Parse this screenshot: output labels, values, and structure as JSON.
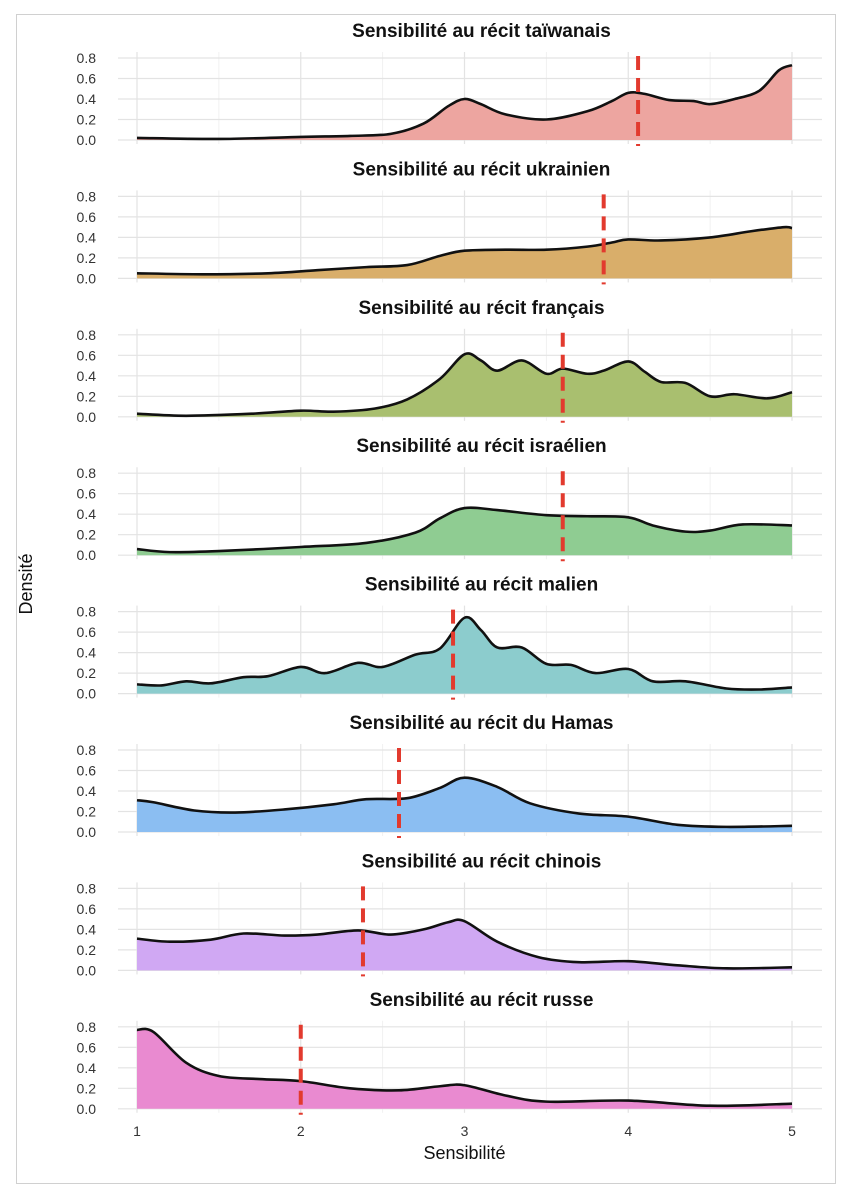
{
  "chart_data": {
    "type": "area",
    "subtype": "density-ridgeline-facets",
    "xlabel": "Sensibilité",
    "ylabel": "Densité",
    "xlim": [
      1,
      5
    ],
    "ylim": [
      0,
      0.8
    ],
    "x_ticks": [
      "1",
      "2",
      "3",
      "4",
      "5"
    ],
    "y_ticks": [
      "0.0",
      "0.2",
      "0.4",
      "0.6",
      "0.8"
    ],
    "grid": true,
    "mean_line": {
      "style": "dashed",
      "color": "#e23a2e"
    },
    "series": [
      {
        "name": "taiwanais",
        "title": "Sensibilité au récit taïwanais",
        "color": "#eda5a0",
        "mean": 4.06,
        "x": [
          1.0,
          1.5,
          2.0,
          2.3,
          2.55,
          2.75,
          2.9,
          3.0,
          3.1,
          3.25,
          3.5,
          3.75,
          3.9,
          4.0,
          4.1,
          4.25,
          4.4,
          4.5,
          4.65,
          4.8,
          4.92,
          5.0
        ],
        "y": [
          0.02,
          0.01,
          0.03,
          0.04,
          0.06,
          0.16,
          0.33,
          0.4,
          0.35,
          0.25,
          0.2,
          0.28,
          0.38,
          0.46,
          0.45,
          0.39,
          0.38,
          0.35,
          0.4,
          0.48,
          0.68,
          0.73
        ]
      },
      {
        "name": "ukrainien",
        "title": "Sensibilité au récit ukrainien",
        "color": "#d9ae6a",
        "mean": 3.85,
        "x": [
          1.0,
          1.4,
          1.8,
          2.1,
          2.4,
          2.65,
          2.85,
          3.0,
          3.25,
          3.5,
          3.75,
          3.9,
          4.0,
          4.2,
          4.5,
          4.75,
          4.95,
          5.0
        ],
        "y": [
          0.05,
          0.04,
          0.05,
          0.08,
          0.11,
          0.13,
          0.22,
          0.27,
          0.28,
          0.28,
          0.31,
          0.35,
          0.38,
          0.37,
          0.4,
          0.46,
          0.5,
          0.49
        ]
      },
      {
        "name": "francais",
        "title": "Sensibilité au récit français",
        "color": "#a9bf6f",
        "mean": 3.6,
        "x": [
          1.0,
          1.3,
          1.7,
          2.0,
          2.2,
          2.45,
          2.65,
          2.85,
          3.0,
          3.1,
          3.2,
          3.35,
          3.5,
          3.6,
          3.75,
          3.85,
          4.0,
          4.1,
          4.2,
          4.35,
          4.5,
          4.65,
          4.85,
          5.0
        ],
        "y": [
          0.03,
          0.01,
          0.03,
          0.06,
          0.05,
          0.08,
          0.17,
          0.37,
          0.61,
          0.55,
          0.45,
          0.55,
          0.42,
          0.47,
          0.42,
          0.45,
          0.54,
          0.44,
          0.34,
          0.33,
          0.2,
          0.22,
          0.18,
          0.24
        ]
      },
      {
        "name": "israelien",
        "title": "Sensibilité au récit israélien",
        "color": "#8fcc92",
        "mean": 3.6,
        "x": [
          1.0,
          1.2,
          1.5,
          2.0,
          2.4,
          2.7,
          2.85,
          3.0,
          3.2,
          3.5,
          3.75,
          4.0,
          4.15,
          4.35,
          4.5,
          4.7,
          5.0
        ],
        "y": [
          0.06,
          0.03,
          0.04,
          0.08,
          0.12,
          0.22,
          0.36,
          0.46,
          0.44,
          0.39,
          0.38,
          0.37,
          0.29,
          0.23,
          0.24,
          0.3,
          0.29
        ]
      },
      {
        "name": "malien",
        "title": "Sensibilité au récit malien",
        "color": "#8ccccd",
        "mean": 2.93,
        "x": [
          1.0,
          1.15,
          1.3,
          1.45,
          1.65,
          1.8,
          2.0,
          2.15,
          2.35,
          2.5,
          2.7,
          2.85,
          3.0,
          3.1,
          3.2,
          3.35,
          3.5,
          3.65,
          3.8,
          4.0,
          4.15,
          4.35,
          4.6,
          4.8,
          5.0
        ],
        "y": [
          0.09,
          0.08,
          0.12,
          0.1,
          0.16,
          0.17,
          0.26,
          0.2,
          0.3,
          0.26,
          0.38,
          0.44,
          0.74,
          0.62,
          0.45,
          0.45,
          0.29,
          0.28,
          0.2,
          0.24,
          0.12,
          0.12,
          0.05,
          0.04,
          0.06
        ]
      },
      {
        "name": "hamas",
        "title": "Sensibilité au récit du Hamas",
        "color": "#8bbef2",
        "mean": 2.6,
        "x": [
          1.0,
          1.1,
          1.35,
          1.6,
          1.9,
          2.2,
          2.4,
          2.65,
          2.85,
          3.0,
          3.2,
          3.4,
          3.7,
          4.0,
          4.3,
          4.6,
          5.0
        ],
        "y": [
          0.31,
          0.29,
          0.21,
          0.19,
          0.22,
          0.27,
          0.32,
          0.33,
          0.43,
          0.53,
          0.44,
          0.28,
          0.18,
          0.15,
          0.07,
          0.05,
          0.06
        ]
      },
      {
        "name": "chinois",
        "title": "Sensibilité au récit chinois",
        "color": "#d0a8f3",
        "mean": 2.38,
        "x": [
          1.0,
          1.2,
          1.45,
          1.65,
          1.9,
          2.1,
          2.35,
          2.55,
          2.75,
          2.9,
          3.0,
          3.2,
          3.45,
          3.7,
          4.0,
          4.3,
          4.6,
          5.0
        ],
        "y": [
          0.31,
          0.28,
          0.3,
          0.36,
          0.34,
          0.35,
          0.39,
          0.35,
          0.4,
          0.47,
          0.48,
          0.28,
          0.13,
          0.08,
          0.09,
          0.05,
          0.02,
          0.03
        ]
      },
      {
        "name": "russe",
        "title": "Sensibilité au récit russe",
        "color": "#e98ad0",
        "mean": 2.0,
        "x": [
          1.0,
          1.1,
          1.3,
          1.5,
          1.75,
          2.0,
          2.3,
          2.6,
          2.85,
          3.0,
          3.25,
          3.5,
          4.0,
          4.5,
          5.0
        ],
        "y": [
          0.77,
          0.75,
          0.45,
          0.32,
          0.29,
          0.27,
          0.2,
          0.18,
          0.22,
          0.23,
          0.13,
          0.07,
          0.08,
          0.03,
          0.05
        ]
      }
    ]
  }
}
